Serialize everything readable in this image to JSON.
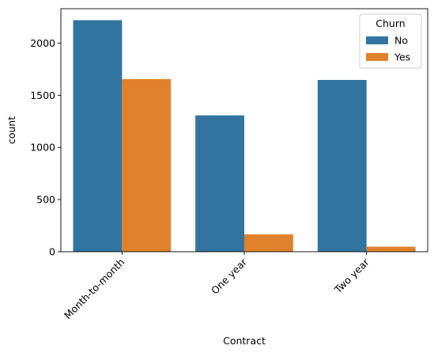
{
  "chart_data": {
    "type": "bar",
    "title": "",
    "xlabel": "Contract",
    "ylabel": "count",
    "categories": [
      "Month-to-month",
      "One year",
      "Two year"
    ],
    "series": [
      {
        "name": "No",
        "values": [
          2220,
          1307,
          1647
        ],
        "color": "#3274a1"
      },
      {
        "name": "Yes",
        "values": [
          1655,
          166,
          48
        ],
        "color": "#e1812c"
      }
    ],
    "ylim": [
      0,
      2330
    ],
    "yticks": [
      0,
      500,
      1000,
      1500,
      2000
    ],
    "x_tick_rotation": -45,
    "grid": false,
    "legend": {
      "title": "Churn",
      "placement": "top-right"
    }
  }
}
